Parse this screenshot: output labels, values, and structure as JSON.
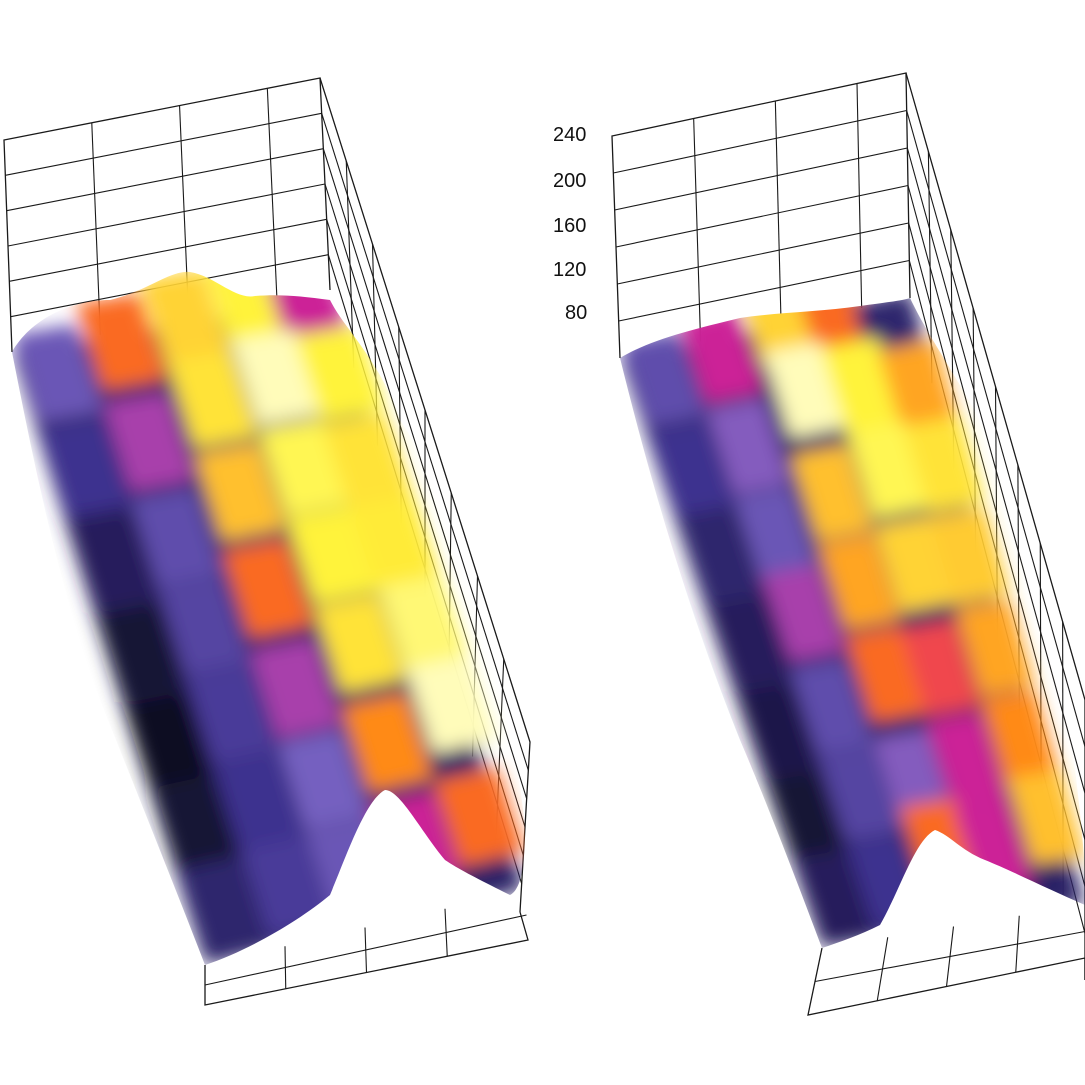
{
  "chart_data": [
    {
      "type": "surface",
      "panel": "left",
      "title": "",
      "xlabel": "",
      "ylabel": "",
      "zlabel": "",
      "zticks": [],
      "colormap": [
        "#0d0c24",
        "#3b2f8c",
        "#7a64c4",
        "#e0138c",
        "#ff7a10",
        "#ffc832",
        "#fff53a",
        "#ffffff"
      ],
      "surface_rows": 7,
      "surface_cols": 5,
      "heights": [
        [
          90,
          150,
          190,
          210,
          120
        ],
        [
          70,
          110,
          200,
          230,
          210
        ],
        [
          55,
          85,
          180,
          215,
          200
        ],
        [
          45,
          80,
          150,
          210,
          205
        ],
        [
          40,
          75,
          110,
          200,
          220
        ],
        [
          45,
          70,
          95,
          160,
          230
        ],
        [
          60,
          75,
          90,
          120,
          150
        ]
      ],
      "grid": true
    },
    {
      "type": "surface",
      "panel": "right",
      "title": "",
      "xlabel": "",
      "ylabel": "",
      "zlabel": "",
      "zticks": [
        "80",
        "120",
        "160",
        "200",
        "240"
      ],
      "colormap": [
        "#0d0c24",
        "#3b2f8c",
        "#7a64c4",
        "#e0138c",
        "#ff7a10",
        "#ffc832",
        "#fff53a",
        "#ffffff"
      ],
      "surface_rows": 7,
      "surface_cols": 5,
      "heights": [
        [
          85,
          120,
          190,
          150,
          60
        ],
        [
          70,
          100,
          230,
          210,
          170
        ],
        [
          60,
          90,
          180,
          215,
          200
        ],
        [
          55,
          110,
          170,
          190,
          185
        ],
        [
          50,
          85,
          150,
          140,
          170
        ],
        [
          45,
          80,
          100,
          120,
          160
        ],
        [
          55,
          70,
          150,
          120,
          180
        ]
      ],
      "grid": true
    }
  ]
}
